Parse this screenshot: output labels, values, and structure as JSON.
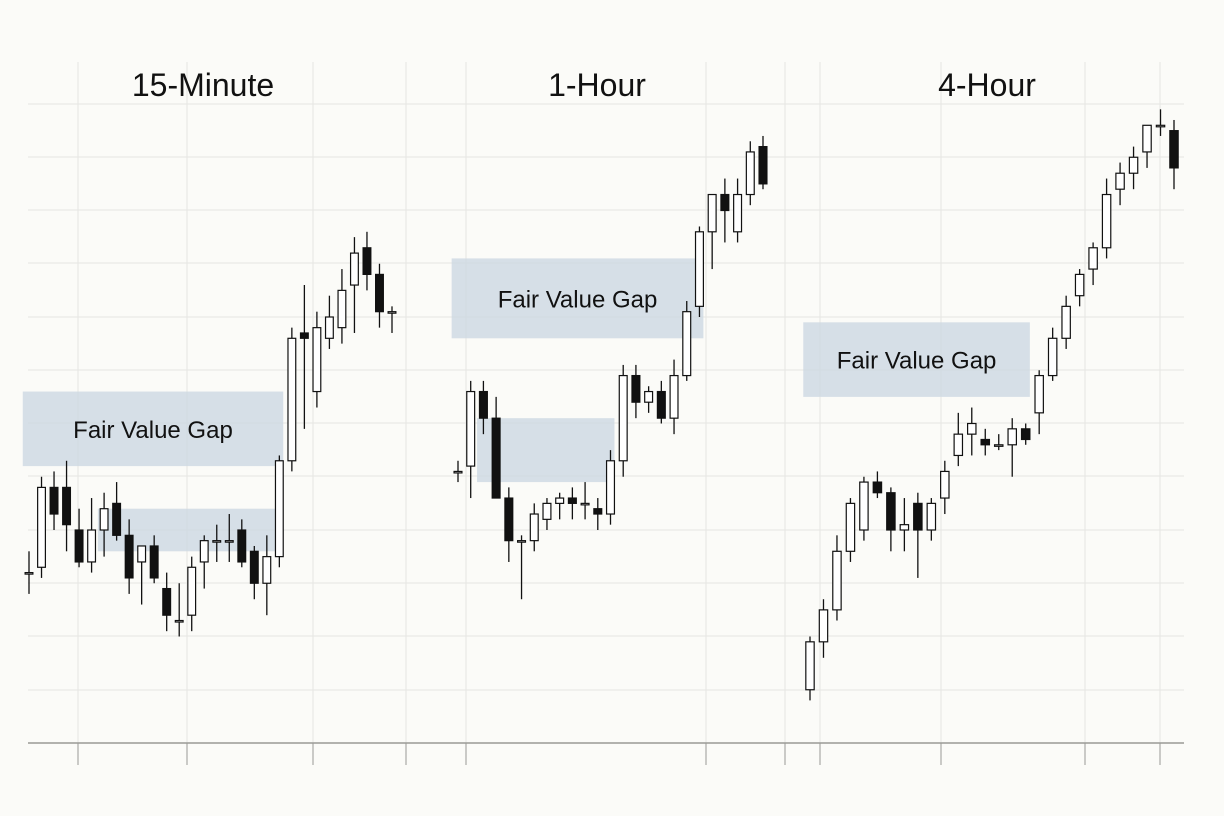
{
  "colors": {
    "background": "#fbfbf8",
    "grid": "#e6e6e2",
    "axis": "#9a9a96",
    "bull_body": "#ffffff",
    "bear_body": "#111111",
    "candle_outline": "#111111",
    "gap_fill": "#cdd8e2"
  },
  "chart_data": [
    {
      "type": "candlestick",
      "title": "15-Minute",
      "y_units": "relative price (read off gridlines, gridline = 1.0)",
      "ylim": [
        0,
        12
      ],
      "grid": true,
      "candles": [
        {
          "o": 3.2,
          "h": 3.6,
          "l": 2.8,
          "c": 3.2
        },
        {
          "o": 3.3,
          "h": 5.0,
          "l": 3.1,
          "c": 4.8
        },
        {
          "o": 4.8,
          "h": 5.1,
          "l": 4.0,
          "c": 4.3
        },
        {
          "o": 4.8,
          "h": 5.3,
          "l": 3.6,
          "c": 4.1
        },
        {
          "o": 4.0,
          "h": 4.4,
          "l": 3.3,
          "c": 3.4
        },
        {
          "o": 3.4,
          "h": 4.6,
          "l": 3.2,
          "c": 4.0
        },
        {
          "o": 4.0,
          "h": 4.7,
          "l": 3.5,
          "c": 4.4
        },
        {
          "o": 4.5,
          "h": 4.9,
          "l": 3.8,
          "c": 3.9
        },
        {
          "o": 3.9,
          "h": 4.2,
          "l": 2.8,
          "c": 3.1
        },
        {
          "o": 3.4,
          "h": 3.7,
          "l": 2.6,
          "c": 3.7
        },
        {
          "o": 3.7,
          "h": 3.9,
          "l": 3.0,
          "c": 3.1
        },
        {
          "o": 2.9,
          "h": 3.2,
          "l": 2.1,
          "c": 2.4
        },
        {
          "o": 2.3,
          "h": 3.0,
          "l": 2.0,
          "c": 2.3
        },
        {
          "o": 2.4,
          "h": 3.5,
          "l": 2.1,
          "c": 3.3
        },
        {
          "o": 3.4,
          "h": 3.9,
          "l": 2.9,
          "c": 3.8
        },
        {
          "o": 3.8,
          "h": 4.1,
          "l": 3.4,
          "c": 3.8
        },
        {
          "o": 3.8,
          "h": 4.3,
          "l": 3.4,
          "c": 3.8
        },
        {
          "o": 4.0,
          "h": 4.2,
          "l": 3.3,
          "c": 3.4
        },
        {
          "o": 3.6,
          "h": 3.7,
          "l": 2.7,
          "c": 3.0
        },
        {
          "o": 3.0,
          "h": 3.9,
          "l": 2.4,
          "c": 3.5
        },
        {
          "o": 3.5,
          "h": 5.4,
          "l": 3.3,
          "c": 5.3
        },
        {
          "o": 5.3,
          "h": 7.8,
          "l": 5.1,
          "c": 7.6
        },
        {
          "o": 7.7,
          "h": 8.6,
          "l": 5.9,
          "c": 7.6
        },
        {
          "o": 6.6,
          "h": 8.1,
          "l": 6.3,
          "c": 7.8
        },
        {
          "o": 7.6,
          "h": 8.4,
          "l": 7.4,
          "c": 8.0
        },
        {
          "o": 7.8,
          "h": 8.9,
          "l": 7.5,
          "c": 8.5
        },
        {
          "o": 8.6,
          "h": 9.5,
          "l": 7.7,
          "c": 9.2
        },
        {
          "o": 9.3,
          "h": 9.6,
          "l": 8.5,
          "c": 8.8
        },
        {
          "o": 8.8,
          "h": 9.0,
          "l": 7.8,
          "c": 8.1
        },
        {
          "o": 8.1,
          "h": 8.2,
          "l": 7.7,
          "c": 8.1
        }
      ],
      "annotations": [
        {
          "label": "Fair Value Gap",
          "from": 0,
          "to": 20,
          "y0": 5.2,
          "y1": 6.6
        },
        {
          "label": "",
          "from": 6,
          "to": 20,
          "y0": 3.6,
          "y1": 4.4
        }
      ]
    },
    {
      "type": "candlestick",
      "title": "1-Hour",
      "y_units": "relative price (read off gridlines, gridline = 1.0)",
      "ylim": [
        0,
        12
      ],
      "grid": true,
      "candles": [
        {
          "o": 5.1,
          "h": 5.3,
          "l": 4.9,
          "c": 5.1
        },
        {
          "o": 5.2,
          "h": 6.8,
          "l": 4.6,
          "c": 6.6
        },
        {
          "o": 6.6,
          "h": 6.8,
          "l": 5.8,
          "c": 6.1
        },
        {
          "o": 6.1,
          "h": 6.5,
          "l": 4.6,
          "c": 4.6
        },
        {
          "o": 4.6,
          "h": 4.8,
          "l": 3.4,
          "c": 3.8
        },
        {
          "o": 3.8,
          "h": 3.9,
          "l": 2.7,
          "c": 3.8
        },
        {
          "o": 3.8,
          "h": 4.5,
          "l": 3.6,
          "c": 4.3
        },
        {
          "o": 4.2,
          "h": 4.6,
          "l": 4.0,
          "c": 4.5
        },
        {
          "o": 4.5,
          "h": 4.7,
          "l": 4.2,
          "c": 4.6
        },
        {
          "o": 4.6,
          "h": 4.8,
          "l": 4.2,
          "c": 4.5
        },
        {
          "o": 4.5,
          "h": 4.9,
          "l": 4.2,
          "c": 4.5
        },
        {
          "o": 4.4,
          "h": 4.6,
          "l": 4.0,
          "c": 4.3
        },
        {
          "o": 4.3,
          "h": 5.5,
          "l": 4.1,
          "c": 5.3
        },
        {
          "o": 5.3,
          "h": 7.1,
          "l": 5.0,
          "c": 6.9
        },
        {
          "o": 6.9,
          "h": 7.1,
          "l": 6.1,
          "c": 6.4
        },
        {
          "o": 6.4,
          "h": 6.7,
          "l": 6.2,
          "c": 6.6
        },
        {
          "o": 6.6,
          "h": 6.8,
          "l": 6.0,
          "c": 6.1
        },
        {
          "o": 6.1,
          "h": 7.2,
          "l": 5.8,
          "c": 6.9
        },
        {
          "o": 6.9,
          "h": 8.3,
          "l": 6.8,
          "c": 8.1
        },
        {
          "o": 8.2,
          "h": 9.7,
          "l": 8.0,
          "c": 9.6
        },
        {
          "o": 9.6,
          "h": 10.3,
          "l": 8.9,
          "c": 10.3
        },
        {
          "o": 10.3,
          "h": 10.6,
          "l": 9.4,
          "c": 10.0
        },
        {
          "o": 9.6,
          "h": 10.6,
          "l": 9.4,
          "c": 10.3
        },
        {
          "o": 10.3,
          "h": 11.3,
          "l": 10.1,
          "c": 11.1
        },
        {
          "o": 11.2,
          "h": 11.4,
          "l": 10.4,
          "c": 10.5
        }
      ],
      "annotations": [
        {
          "label": "Fair Value Gap",
          "from": 0,
          "to": 19,
          "y0": 7.6,
          "y1": 9.1
        },
        {
          "label": "",
          "from": 2,
          "to": 12,
          "y0": 4.9,
          "y1": 6.1
        }
      ]
    },
    {
      "type": "candlestick",
      "title": "4-Hour",
      "y_units": "relative price (read off gridlines, gridline = 1.0)",
      "ylim": [
        0,
        12
      ],
      "grid": true,
      "candles": [
        {
          "o": 1.0,
          "h": 2.0,
          "l": 0.8,
          "c": 1.9
        },
        {
          "o": 1.9,
          "h": 2.7,
          "l": 1.6,
          "c": 2.5
        },
        {
          "o": 2.5,
          "h": 3.9,
          "l": 2.3,
          "c": 3.6
        },
        {
          "o": 3.6,
          "h": 4.6,
          "l": 3.4,
          "c": 4.5
        },
        {
          "o": 4.0,
          "h": 5.0,
          "l": 3.8,
          "c": 4.9
        },
        {
          "o": 4.9,
          "h": 5.1,
          "l": 4.6,
          "c": 4.7
        },
        {
          "o": 4.7,
          "h": 4.8,
          "l": 3.6,
          "c": 4.0
        },
        {
          "o": 4.0,
          "h": 4.6,
          "l": 3.6,
          "c": 4.1
        },
        {
          "o": 4.5,
          "h": 4.7,
          "l": 3.1,
          "c": 4.0
        },
        {
          "o": 4.0,
          "h": 4.6,
          "l": 3.8,
          "c": 4.5
        },
        {
          "o": 4.6,
          "h": 5.3,
          "l": 4.3,
          "c": 5.1
        },
        {
          "o": 5.4,
          "h": 6.2,
          "l": 5.2,
          "c": 5.8
        },
        {
          "o": 5.8,
          "h": 6.3,
          "l": 5.4,
          "c": 6.0
        },
        {
          "o": 5.7,
          "h": 5.9,
          "l": 5.4,
          "c": 5.6
        },
        {
          "o": 5.6,
          "h": 5.8,
          "l": 5.5,
          "c": 5.6
        },
        {
          "o": 5.6,
          "h": 6.1,
          "l": 5.0,
          "c": 5.9
        },
        {
          "o": 5.9,
          "h": 6.0,
          "l": 5.6,
          "c": 5.7
        },
        {
          "o": 6.2,
          "h": 7.0,
          "l": 5.8,
          "c": 6.9
        },
        {
          "o": 6.9,
          "h": 7.8,
          "l": 6.8,
          "c": 7.6
        },
        {
          "o": 7.6,
          "h": 8.4,
          "l": 7.4,
          "c": 8.2
        },
        {
          "o": 8.4,
          "h": 8.9,
          "l": 8.2,
          "c": 8.8
        },
        {
          "o": 8.9,
          "h": 9.4,
          "l": 8.6,
          "c": 9.3
        },
        {
          "o": 9.3,
          "h": 10.6,
          "l": 9.1,
          "c": 10.3
        },
        {
          "o": 10.4,
          "h": 10.9,
          "l": 10.1,
          "c": 10.7
        },
        {
          "o": 10.7,
          "h": 11.2,
          "l": 10.4,
          "c": 11.0
        },
        {
          "o": 11.1,
          "h": 11.6,
          "l": 10.8,
          "c": 11.6
        },
        {
          "o": 11.6,
          "h": 11.9,
          "l": 11.4,
          "c": 11.6
        },
        {
          "o": 11.5,
          "h": 11.7,
          "l": 10.4,
          "c": 10.8
        }
      ],
      "annotations": [
        {
          "label": "Fair Value Gap",
          "from": 0,
          "to": 16,
          "y0": 6.5,
          "y1": 7.9
        }
      ]
    }
  ]
}
